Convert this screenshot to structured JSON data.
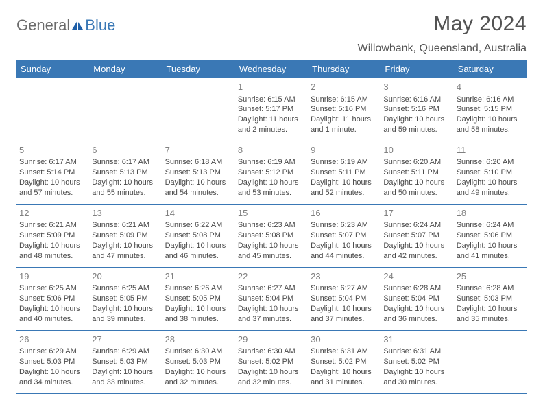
{
  "brand": {
    "part1": "General",
    "part2": "Blue"
  },
  "title": "May 2024",
  "location": "Willowbank, Queensland, Australia",
  "colors": {
    "header_bg": "#3a78b5",
    "header_fg": "#ffffff",
    "text": "#4a4a4a",
    "daynum": "#808080",
    "title_color": "#535353",
    "border": "#3a78b5",
    "page_bg": "#ffffff"
  },
  "typography": {
    "title_fontsize": 30,
    "location_fontsize": 16,
    "dayheader_fontsize": 13,
    "cell_fontsize": 11,
    "daynum_fontsize": 13
  },
  "day_headers": [
    "Sunday",
    "Monday",
    "Tuesday",
    "Wednesday",
    "Thursday",
    "Friday",
    "Saturday"
  ],
  "weeks": [
    [
      null,
      null,
      null,
      {
        "n": "1",
        "sr": "Sunrise: 6:15 AM",
        "ss": "Sunset: 5:17 PM",
        "dl": "Daylight: 11 hours and 2 minutes."
      },
      {
        "n": "2",
        "sr": "Sunrise: 6:15 AM",
        "ss": "Sunset: 5:16 PM",
        "dl": "Daylight: 11 hours and 1 minute."
      },
      {
        "n": "3",
        "sr": "Sunrise: 6:16 AM",
        "ss": "Sunset: 5:16 PM",
        "dl": "Daylight: 10 hours and 59 minutes."
      },
      {
        "n": "4",
        "sr": "Sunrise: 6:16 AM",
        "ss": "Sunset: 5:15 PM",
        "dl": "Daylight: 10 hours and 58 minutes."
      }
    ],
    [
      {
        "n": "5",
        "sr": "Sunrise: 6:17 AM",
        "ss": "Sunset: 5:14 PM",
        "dl": "Daylight: 10 hours and 57 minutes."
      },
      {
        "n": "6",
        "sr": "Sunrise: 6:17 AM",
        "ss": "Sunset: 5:13 PM",
        "dl": "Daylight: 10 hours and 55 minutes."
      },
      {
        "n": "7",
        "sr": "Sunrise: 6:18 AM",
        "ss": "Sunset: 5:13 PM",
        "dl": "Daylight: 10 hours and 54 minutes."
      },
      {
        "n": "8",
        "sr": "Sunrise: 6:19 AM",
        "ss": "Sunset: 5:12 PM",
        "dl": "Daylight: 10 hours and 53 minutes."
      },
      {
        "n": "9",
        "sr": "Sunrise: 6:19 AM",
        "ss": "Sunset: 5:11 PM",
        "dl": "Daylight: 10 hours and 52 minutes."
      },
      {
        "n": "10",
        "sr": "Sunrise: 6:20 AM",
        "ss": "Sunset: 5:11 PM",
        "dl": "Daylight: 10 hours and 50 minutes."
      },
      {
        "n": "11",
        "sr": "Sunrise: 6:20 AM",
        "ss": "Sunset: 5:10 PM",
        "dl": "Daylight: 10 hours and 49 minutes."
      }
    ],
    [
      {
        "n": "12",
        "sr": "Sunrise: 6:21 AM",
        "ss": "Sunset: 5:09 PM",
        "dl": "Daylight: 10 hours and 48 minutes."
      },
      {
        "n": "13",
        "sr": "Sunrise: 6:21 AM",
        "ss": "Sunset: 5:09 PM",
        "dl": "Daylight: 10 hours and 47 minutes."
      },
      {
        "n": "14",
        "sr": "Sunrise: 6:22 AM",
        "ss": "Sunset: 5:08 PM",
        "dl": "Daylight: 10 hours and 46 minutes."
      },
      {
        "n": "15",
        "sr": "Sunrise: 6:23 AM",
        "ss": "Sunset: 5:08 PM",
        "dl": "Daylight: 10 hours and 45 minutes."
      },
      {
        "n": "16",
        "sr": "Sunrise: 6:23 AM",
        "ss": "Sunset: 5:07 PM",
        "dl": "Daylight: 10 hours and 44 minutes."
      },
      {
        "n": "17",
        "sr": "Sunrise: 6:24 AM",
        "ss": "Sunset: 5:07 PM",
        "dl": "Daylight: 10 hours and 42 minutes."
      },
      {
        "n": "18",
        "sr": "Sunrise: 6:24 AM",
        "ss": "Sunset: 5:06 PM",
        "dl": "Daylight: 10 hours and 41 minutes."
      }
    ],
    [
      {
        "n": "19",
        "sr": "Sunrise: 6:25 AM",
        "ss": "Sunset: 5:06 PM",
        "dl": "Daylight: 10 hours and 40 minutes."
      },
      {
        "n": "20",
        "sr": "Sunrise: 6:25 AM",
        "ss": "Sunset: 5:05 PM",
        "dl": "Daylight: 10 hours and 39 minutes."
      },
      {
        "n": "21",
        "sr": "Sunrise: 6:26 AM",
        "ss": "Sunset: 5:05 PM",
        "dl": "Daylight: 10 hours and 38 minutes."
      },
      {
        "n": "22",
        "sr": "Sunrise: 6:27 AM",
        "ss": "Sunset: 5:04 PM",
        "dl": "Daylight: 10 hours and 37 minutes."
      },
      {
        "n": "23",
        "sr": "Sunrise: 6:27 AM",
        "ss": "Sunset: 5:04 PM",
        "dl": "Daylight: 10 hours and 37 minutes."
      },
      {
        "n": "24",
        "sr": "Sunrise: 6:28 AM",
        "ss": "Sunset: 5:04 PM",
        "dl": "Daylight: 10 hours and 36 minutes."
      },
      {
        "n": "25",
        "sr": "Sunrise: 6:28 AM",
        "ss": "Sunset: 5:03 PM",
        "dl": "Daylight: 10 hours and 35 minutes."
      }
    ],
    [
      {
        "n": "26",
        "sr": "Sunrise: 6:29 AM",
        "ss": "Sunset: 5:03 PM",
        "dl": "Daylight: 10 hours and 34 minutes."
      },
      {
        "n": "27",
        "sr": "Sunrise: 6:29 AM",
        "ss": "Sunset: 5:03 PM",
        "dl": "Daylight: 10 hours and 33 minutes."
      },
      {
        "n": "28",
        "sr": "Sunrise: 6:30 AM",
        "ss": "Sunset: 5:03 PM",
        "dl": "Daylight: 10 hours and 32 minutes."
      },
      {
        "n": "29",
        "sr": "Sunrise: 6:30 AM",
        "ss": "Sunset: 5:02 PM",
        "dl": "Daylight: 10 hours and 32 minutes."
      },
      {
        "n": "30",
        "sr": "Sunrise: 6:31 AM",
        "ss": "Sunset: 5:02 PM",
        "dl": "Daylight: 10 hours and 31 minutes."
      },
      {
        "n": "31",
        "sr": "Sunrise: 6:31 AM",
        "ss": "Sunset: 5:02 PM",
        "dl": "Daylight: 10 hours and 30 minutes."
      },
      null
    ]
  ]
}
